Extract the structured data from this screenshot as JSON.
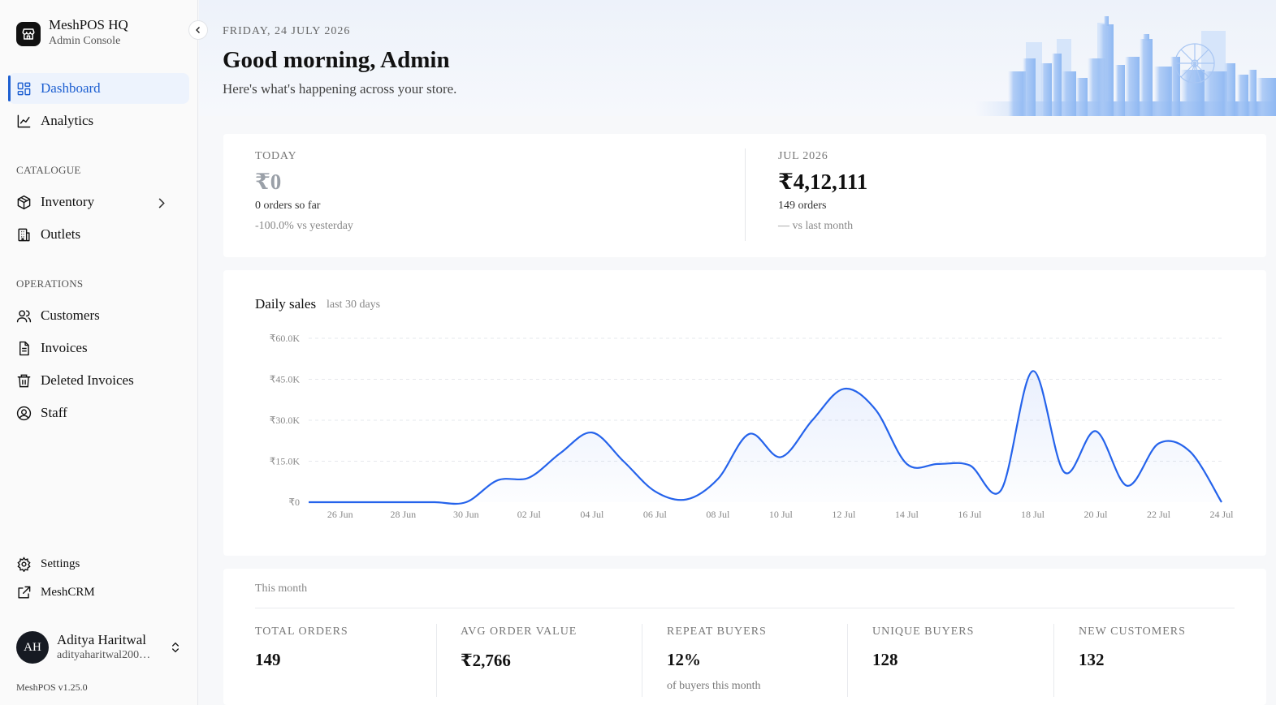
{
  "brand": {
    "name": "MeshPOS HQ",
    "subtitle": "Admin Console"
  },
  "nav": {
    "dashboard": "Dashboard",
    "analytics": "Analytics",
    "catalogue_label": "CATALOGUE",
    "inventory": "Inventory",
    "outlets": "Outlets",
    "operations_label": "OPERATIONS",
    "customers": "Customers",
    "invoices": "Invoices",
    "deleted_invoices": "Deleted Invoices",
    "staff": "Staff"
  },
  "footer": {
    "settings": "Settings",
    "meshcrm": "MeshCRM",
    "version": "MeshPOS v1.25.0"
  },
  "user": {
    "initials": "AH",
    "name": "Aditya Haritwal",
    "email": "adityaharitwal200…"
  },
  "header": {
    "date": "FRIDAY, 24 JULY 2026",
    "greeting": "Good morning, Admin",
    "subtitle": "Here's what's happening across your store."
  },
  "kpis": {
    "today": {
      "label": "TODAY",
      "value": "₹0",
      "orders": "0 orders so far",
      "delta": "-100.0% vs yesterday"
    },
    "month": {
      "label": "JUL 2026",
      "value": "₹4,12,111",
      "orders": "149 orders",
      "delta": "— vs last month"
    }
  },
  "chart_card": {
    "title": "Daily sales",
    "subtitle": "last 30 days"
  },
  "chart_data": {
    "type": "area",
    "title": "Daily sales",
    "subtitle": "last 30 days",
    "x": [
      "25 Jun",
      "26 Jun",
      "27 Jun",
      "28 Jun",
      "29 Jun",
      "30 Jun",
      "01 Jul",
      "02 Jul",
      "03 Jul",
      "04 Jul",
      "05 Jul",
      "06 Jul",
      "07 Jul",
      "08 Jul",
      "09 Jul",
      "10 Jul",
      "11 Jul",
      "12 Jul",
      "13 Jul",
      "14 Jul",
      "15 Jul",
      "16 Jul",
      "17 Jul",
      "18 Jul",
      "19 Jul",
      "20 Jul",
      "21 Jul",
      "22 Jul",
      "23 Jul",
      "24 Jul"
    ],
    "x_tick_labels": [
      "26 Jun",
      "28 Jun",
      "30 Jun",
      "02 Jul",
      "04 Jul",
      "06 Jul",
      "08 Jul",
      "10 Jul",
      "12 Jul",
      "14 Jul",
      "16 Jul",
      "18 Jul",
      "20 Jul",
      "22 Jul",
      "24 Jul"
    ],
    "values": [
      0,
      0,
      0,
      0,
      0,
      0,
      8000,
      9000,
      18000,
      25500,
      15000,
      4000,
      1000,
      8500,
      25000,
      16500,
      30000,
      41500,
      34000,
      14000,
      14000,
      13500,
      4500,
      48000,
      11000,
      26000,
      6000,
      21500,
      18500,
      0
    ],
    "ylim": [
      0,
      60000
    ],
    "y_tick_labels": [
      "₹0",
      "₹15.0K",
      "₹30.0K",
      "₹45.0K",
      "₹60.0K"
    ],
    "y_ticks": [
      0,
      15000,
      30000,
      45000,
      60000
    ],
    "grid": true,
    "color": "#2563eb"
  },
  "month_stats": {
    "label": "This month",
    "items": [
      {
        "label": "TOTAL ORDERS",
        "value": "149",
        "note": ""
      },
      {
        "label": "AVG ORDER VALUE",
        "value": "₹2,766",
        "note": ""
      },
      {
        "label": "REPEAT BUYERS",
        "value": "12%",
        "note": "of buyers this month"
      },
      {
        "label": "UNIQUE BUYERS",
        "value": "128",
        "note": ""
      },
      {
        "label": "NEW CUSTOMERS",
        "value": "132",
        "note": ""
      }
    ]
  },
  "colors": {
    "accent": "#1d5fd1",
    "line": "#2563eb",
    "avatar_bg": "#161a22"
  },
  "icons": [
    "store-icon",
    "chevron-left-icon",
    "dashboard-icon",
    "analytics-icon",
    "box-icon",
    "building-icon",
    "users-icon",
    "file-icon",
    "trash-icon",
    "user-circle-icon",
    "gear-icon",
    "external-link-icon",
    "chevron-right-icon",
    "chevrons-up-down-icon"
  ]
}
